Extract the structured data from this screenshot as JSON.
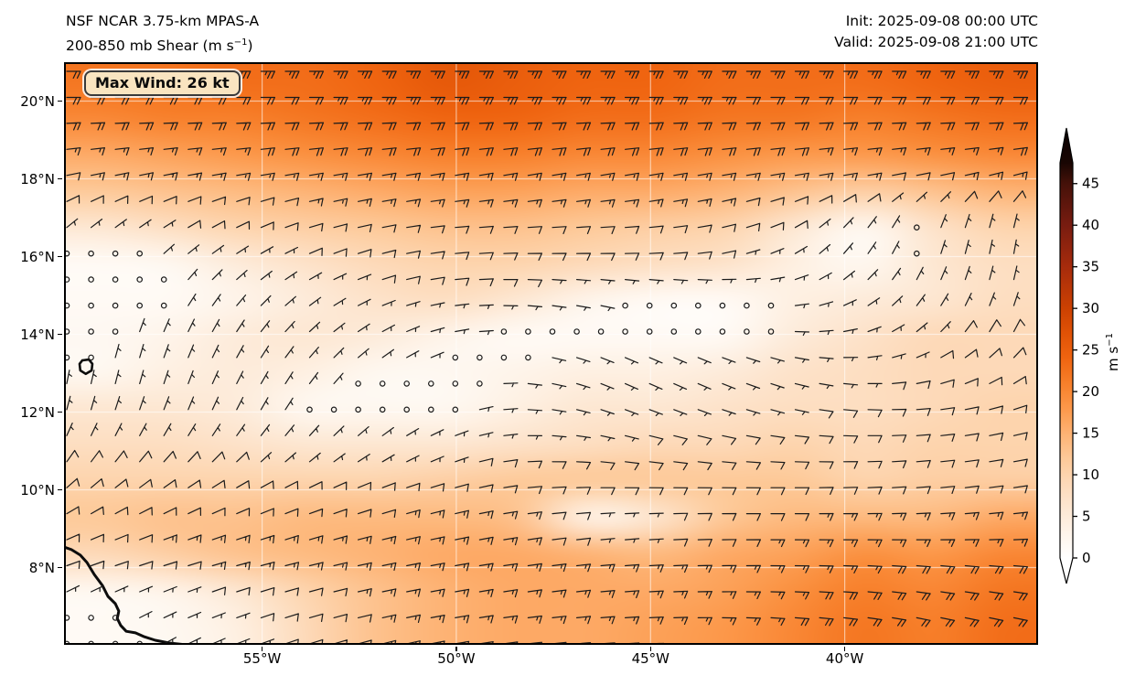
{
  "header": {
    "title_line1": "NSF NCAR 3.75-km MPAS-A",
    "title_line2_prefix": "200-850 mb Shear (m s",
    "title_line2_sup": "−1",
    "title_line2_suffix": ")",
    "init_label": "Init: 2025-09-08 00:00 UTC",
    "valid_label": "Valid: 2025-09-08 21:00 UTC"
  },
  "annotation": {
    "max_wind_label": "Max Wind: 26 kt"
  },
  "axes": {
    "lat_ticks": [
      {
        "label": "20°N",
        "lat": 20
      },
      {
        "label": "18°N",
        "lat": 18
      },
      {
        "label": "16°N",
        "lat": 16
      },
      {
        "label": "14°N",
        "lat": 14
      },
      {
        "label": "12°N",
        "lat": 12
      },
      {
        "label": "10°N",
        "lat": 10
      },
      {
        "label": "8°N",
        "lat": 8
      }
    ],
    "lon_ticks": [
      {
        "label": "55°W",
        "lon": 55
      },
      {
        "label": "50°W",
        "lon": 50
      },
      {
        "label": "45°W",
        "lon": 45
      },
      {
        "label": "40°W",
        "lon": 40
      }
    ],
    "lat_top": 21.0,
    "lat_bottom": 6.0,
    "lon_left": 60.1,
    "lon_right": 35.0
  },
  "colorbar": {
    "ticks": [
      0,
      5,
      10,
      15,
      20,
      25,
      30,
      35,
      40,
      45
    ],
    "vmin": 0,
    "vmax": 47.5,
    "label_main": "m s",
    "label_sup": "−1",
    "extend": "both"
  },
  "chart_data": {
    "type": "heatmap",
    "field": "200-850 mb wind shear with shear barbs",
    "title": "NSF NCAR 3.75-km MPAS-A 200-850 mb Shear (m s-1)",
    "init_time": "2025-09-08 00:00 UTC",
    "valid_time": "2025-09-08 21:00 UTC",
    "max_wind_kt": 26,
    "shading_units": "m s-1",
    "barb_units": "kt",
    "lon_cols": [
      60,
      58,
      56,
      54,
      52,
      50,
      48,
      46,
      44,
      42,
      40,
      38,
      36,
      34
    ],
    "lat_rows": [
      21,
      20,
      19,
      18,
      17,
      16,
      15,
      14,
      13,
      12,
      11,
      10,
      9,
      8,
      7,
      6
    ],
    "shear_grid": [
      [
        22,
        22,
        23,
        23,
        24,
        26,
        25,
        24,
        24,
        23,
        23,
        23,
        24,
        25
      ],
      [
        20,
        21,
        21,
        22,
        23,
        24,
        24,
        23,
        23,
        22,
        22,
        21,
        22,
        23
      ],
      [
        16,
        17,
        18,
        19,
        20,
        21,
        21,
        20,
        20,
        19,
        18,
        18,
        19,
        20
      ],
      [
        12,
        13,
        14,
        15,
        16,
        17,
        17,
        16,
        16,
        15,
        13,
        11,
        13,
        15
      ],
      [
        6,
        8,
        10,
        11,
        12,
        13,
        13,
        12,
        11,
        10,
        6,
        2,
        7,
        10
      ],
      [
        1.5,
        2,
        5,
        7,
        9,
        10,
        10,
        9,
        8,
        7,
        4,
        2,
        6,
        8
      ],
      [
        1.5,
        1.5,
        3,
        5,
        7,
        8,
        6,
        3,
        1.5,
        1.5,
        4,
        5,
        6,
        8
      ],
      [
        1.8,
        3,
        5,
        6,
        5,
        3,
        1.5,
        1.5,
        1.5,
        1.5,
        5,
        7,
        9,
        9
      ],
      [
        2,
        4,
        5,
        4,
        2,
        2,
        3,
        4,
        4,
        5,
        7,
        8,
        9,
        9
      ],
      [
        6,
        6,
        5,
        2,
        2,
        2,
        4,
        6,
        6,
        7,
        8,
        8,
        9,
        10
      ],
      [
        8,
        8,
        7,
        6,
        6,
        6,
        7,
        8,
        9,
        9,
        10,
        9,
        10,
        10
      ],
      [
        10,
        10,
        10,
        10,
        10,
        11,
        12,
        12,
        12,
        12,
        12,
        10,
        11,
        11
      ],
      [
        12,
        13,
        13,
        14,
        14,
        14,
        13,
        3,
        6,
        12,
        14,
        14,
        14,
        16
      ],
      [
        9,
        11,
        13,
        14,
        15,
        16,
        16,
        15,
        14,
        16,
        17,
        19,
        18,
        20
      ],
      [
        2,
        3,
        6,
        10,
        13,
        15,
        16,
        16,
        16,
        17,
        19,
        21,
        20,
        22
      ],
      [
        1.5,
        2,
        4,
        9,
        13,
        15,
        16,
        16,
        17,
        18,
        20,
        22,
        21,
        23
      ]
    ],
    "barb_dir_from_deg": [
      [
        90,
        90,
        90,
        90,
        90,
        90,
        90,
        90,
        90,
        90,
        90,
        90,
        90,
        90
      ],
      [
        90,
        90,
        90,
        90,
        90,
        90,
        90,
        90,
        90,
        90,
        90,
        90,
        90,
        90
      ],
      [
        85,
        85,
        85,
        85,
        85,
        85,
        85,
        85,
        85,
        85,
        85,
        85,
        85,
        85
      ],
      [
        78,
        78,
        80,
        80,
        80,
        80,
        80,
        80,
        80,
        80,
        80,
        78,
        75,
        75
      ],
      [
        55,
        60,
        65,
        75,
        80,
        85,
        85,
        85,
        80,
        70,
        45,
        25,
        15,
        15
      ],
      [
        40,
        45,
        55,
        65,
        75,
        85,
        90,
        90,
        85,
        70,
        40,
        20,
        10,
        10
      ],
      [
        25,
        30,
        40,
        55,
        70,
        85,
        95,
        100,
        100,
        90,
        60,
        30,
        15,
        15
      ],
      [
        15,
        20,
        30,
        45,
        60,
        80,
        100,
        110,
        110,
        100,
        80,
        50,
        30,
        25
      ],
      [
        10,
        15,
        25,
        35,
        50,
        70,
        100,
        115,
        115,
        110,
        95,
        75,
        55,
        45
      ],
      [
        15,
        20,
        25,
        35,
        50,
        70,
        95,
        110,
        110,
        105,
        95,
        85,
        75,
        65
      ],
      [
        30,
        35,
        40,
        45,
        55,
        70,
        90,
        100,
        100,
        95,
        90,
        85,
        80,
        75
      ],
      [
        50,
        55,
        60,
        65,
        70,
        75,
        85,
        90,
        90,
        90,
        88,
        85,
        82,
        80
      ],
      [
        65,
        68,
        70,
        72,
        75,
        78,
        82,
        85,
        88,
        90,
        90,
        88,
        85,
        85
      ],
      [
        70,
        72,
        74,
        76,
        78,
        80,
        82,
        85,
        88,
        90,
        92,
        95,
        95,
        95
      ],
      [
        60,
        65,
        70,
        74,
        78,
        80,
        82,
        85,
        88,
        92,
        95,
        100,
        100,
        100
      ],
      [
        50,
        60,
        68,
        72,
        76,
        80,
        84,
        86,
        90,
        95,
        100,
        105,
        105,
        105
      ]
    ],
    "colormap_stops": [
      [
        0,
        "#ffffff"
      ],
      [
        3,
        "#fef4ea"
      ],
      [
        6,
        "#fde7d2"
      ],
      [
        9,
        "#fdd9b8"
      ],
      [
        12,
        "#fdc998"
      ],
      [
        15,
        "#fdb273"
      ],
      [
        18,
        "#fc984a"
      ],
      [
        21,
        "#f77f2a"
      ],
      [
        24,
        "#ef6410"
      ],
      [
        27,
        "#e05206"
      ],
      [
        30,
        "#cc4102"
      ],
      [
        35,
        "#a62b0c"
      ],
      [
        40,
        "#781c10"
      ],
      [
        45,
        "#451109"
      ],
      [
        47.5,
        "#190603"
      ]
    ],
    "coastlines": {
      "south_america": [
        [
          60.1,
          8.53
        ],
        [
          59.91,
          8.46
        ],
        [
          59.68,
          8.32
        ],
        [
          59.51,
          8.13
        ],
        [
          59.32,
          7.82
        ],
        [
          59.11,
          7.54
        ],
        [
          58.97,
          7.26
        ],
        [
          58.78,
          7.07
        ],
        [
          58.69,
          6.88
        ],
        [
          58.73,
          6.69
        ],
        [
          58.64,
          6.51
        ],
        [
          58.5,
          6.36
        ],
        [
          58.26,
          6.32
        ],
        [
          58.03,
          6.22
        ],
        [
          57.75,
          6.13
        ],
        [
          57.39,
          6.06
        ],
        [
          56.92,
          6.01
        ],
        [
          56.4,
          5.98
        ]
      ],
      "barbados": [
        [
          59.63,
          13.33
        ],
        [
          59.46,
          13.35
        ],
        [
          59.37,
          13.24
        ],
        [
          59.39,
          13.07
        ],
        [
          59.54,
          12.98
        ],
        [
          59.68,
          13.07
        ],
        [
          59.7,
          13.24
        ],
        [
          59.63,
          13.33
        ]
      ]
    },
    "grid_on": true,
    "legend_position": "right-colorbar"
  }
}
